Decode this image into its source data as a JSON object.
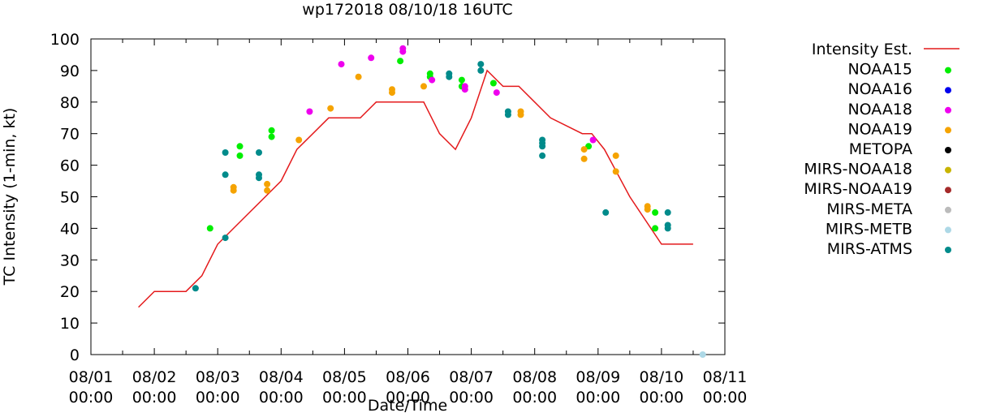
{
  "chart_data": {
    "type": "scatter",
    "title": "wp172018 08/10/18 16UTC",
    "xlabel": "Date/Time",
    "ylabel": "TC Intensity (1-min, kt)",
    "xlim": [
      0,
      10
    ],
    "ylim": [
      0,
      100
    ],
    "y_ticks": [
      0,
      10,
      20,
      30,
      40,
      50,
      60,
      70,
      80,
      90,
      100
    ],
    "x_ticks": [
      {
        "value": 0,
        "date": "08/01",
        "time": "00:00"
      },
      {
        "value": 1,
        "date": "08/02",
        "time": "00:00"
      },
      {
        "value": 2,
        "date": "08/03",
        "time": "00:00"
      },
      {
        "value": 3,
        "date": "08/04",
        "time": "00:00"
      },
      {
        "value": 4,
        "date": "08/05",
        "time": "00:00"
      },
      {
        "value": 5,
        "date": "08/06",
        "time": "00:00"
      },
      {
        "value": 6,
        "date": "08/07",
        "time": "00:00"
      },
      {
        "value": 7,
        "date": "08/08",
        "time": "00:00"
      },
      {
        "value": 8,
        "date": "08/09",
        "time": "00:00"
      },
      {
        "value": 9,
        "date": "08/10",
        "time": "00:00"
      },
      {
        "value": 10,
        "date": "08/11",
        "time": "00:00"
      }
    ],
    "legend": [
      {
        "name": "Intensity Est.",
        "color": "#e41a1c",
        "style": "line"
      },
      {
        "name": "NOAA15",
        "color": "#00ee00",
        "style": "point"
      },
      {
        "name": "NOAA16",
        "color": "#0000ee",
        "style": "point"
      },
      {
        "name": "NOAA18",
        "color": "#ee00ee",
        "style": "point"
      },
      {
        "name": "NOAA19",
        "color": "#f5a300",
        "style": "point"
      },
      {
        "name": "METOPA",
        "color": "#000000",
        "style": "point"
      },
      {
        "name": "MIRS-NOAA18",
        "color": "#c8b400",
        "style": "point"
      },
      {
        "name": "MIRS-NOAA19",
        "color": "#a52a2a",
        "style": "point"
      },
      {
        "name": "MIRS-META",
        "color": "#bbbbbb",
        "style": "point"
      },
      {
        "name": "MIRS-METB",
        "color": "#add8e6",
        "style": "point"
      },
      {
        "name": "MIRS-ATMS",
        "color": "#008b8b",
        "style": "point"
      }
    ],
    "intensity_estimate": {
      "name": "Intensity Est.",
      "x": [
        0.75,
        1.0,
        1.5,
        1.75,
        2.0,
        2.25,
        2.5,
        2.75,
        3.0,
        3.25,
        3.75,
        4.0,
        4.25,
        4.5,
        5.0,
        5.25,
        5.5,
        5.75,
        6.0,
        6.25,
        6.5,
        6.75,
        7.0,
        7.25,
        7.75,
        7.9,
        8.1,
        8.5,
        9.0,
        9.5
      ],
      "y": [
        15,
        20,
        20,
        25,
        35,
        40,
        45,
        50,
        55,
        65,
        75,
        75,
        75,
        80,
        80,
        80,
        70,
        65,
        75,
        90,
        85,
        85,
        80,
        75,
        70,
        70,
        65,
        50,
        35,
        35
      ]
    },
    "series": [
      {
        "name": "NOAA15",
        "color": "#00ee00",
        "points": [
          [
            1.88,
            40
          ],
          [
            2.35,
            66
          ],
          [
            2.35,
            63
          ],
          [
            2.85,
            71
          ],
          [
            2.85,
            69
          ],
          [
            4.88,
            93
          ],
          [
            5.35,
            89
          ],
          [
            5.35,
            88
          ],
          [
            5.85,
            87
          ],
          [
            5.85,
            85
          ],
          [
            6.35,
            86
          ],
          [
            7.85,
            66
          ],
          [
            8.9,
            45
          ],
          [
            8.9,
            40
          ]
        ]
      },
      {
        "name": "NOAA18",
        "color": "#ee00ee",
        "points": [
          [
            3.45,
            77
          ],
          [
            3.95,
            92
          ],
          [
            4.42,
            94
          ],
          [
            4.92,
            97
          ],
          [
            4.92,
            96
          ],
          [
            5.38,
            87
          ],
          [
            5.9,
            85
          ],
          [
            5.9,
            84
          ],
          [
            6.4,
            83
          ],
          [
            7.92,
            68
          ]
        ]
      },
      {
        "name": "NOAA19",
        "color": "#f5a300",
        "points": [
          [
            2.25,
            53
          ],
          [
            2.25,
            52
          ],
          [
            2.78,
            54
          ],
          [
            2.78,
            52
          ],
          [
            3.28,
            68
          ],
          [
            3.78,
            78
          ],
          [
            4.22,
            88
          ],
          [
            4.75,
            84
          ],
          [
            4.75,
            83
          ],
          [
            5.25,
            85
          ],
          [
            6.78,
            77
          ],
          [
            6.78,
            76
          ],
          [
            7.78,
            65
          ],
          [
            7.78,
            62
          ],
          [
            8.28,
            63
          ],
          [
            8.28,
            58
          ],
          [
            8.78,
            47
          ],
          [
            8.78,
            46
          ]
        ]
      },
      {
        "name": "MIRS-ATMS",
        "color": "#008b8b",
        "points": [
          [
            1.65,
            21
          ],
          [
            2.12,
            64
          ],
          [
            2.12,
            57
          ],
          [
            2.12,
            37
          ],
          [
            2.65,
            64
          ],
          [
            2.65,
            57
          ],
          [
            2.65,
            56
          ],
          [
            5.65,
            89
          ],
          [
            5.65,
            88
          ],
          [
            6.15,
            92
          ],
          [
            6.15,
            90
          ],
          [
            6.58,
            77
          ],
          [
            6.58,
            76
          ],
          [
            7.12,
            68
          ],
          [
            7.12,
            67
          ],
          [
            7.12,
            66
          ],
          [
            7.12,
            63
          ],
          [
            8.12,
            45
          ],
          [
            9.1,
            45
          ],
          [
            9.1,
            41
          ],
          [
            9.1,
            40
          ]
        ]
      },
      {
        "name": "MIRS-METB",
        "color": "#add8e6",
        "points": [
          [
            9.65,
            0
          ]
        ]
      }
    ]
  }
}
